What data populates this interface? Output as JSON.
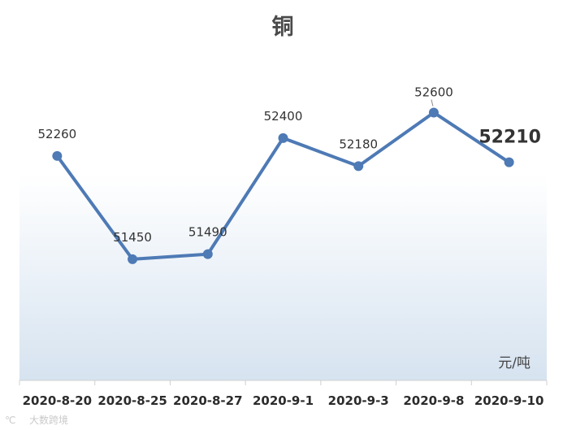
{
  "chart_data": {
    "type": "line",
    "title": "铜",
    "unit": "元/吨",
    "categories": [
      "2020-8-20",
      "2020-8-25",
      "2020-8-27",
      "2020-9-1",
      "2020-9-3",
      "2020-9-8",
      "2020-9-10"
    ],
    "series": [
      {
        "values": [
          52260,
          51450,
          51490,
          52400,
          52180,
          52600,
          52210
        ]
      }
    ],
    "ylim": [
      50500,
      53100
    ],
    "grid": false,
    "legend": "none",
    "line_color": "#4e7ab5",
    "gradient_color": "#d6e3f0"
  },
  "watermark": "大数跨境"
}
